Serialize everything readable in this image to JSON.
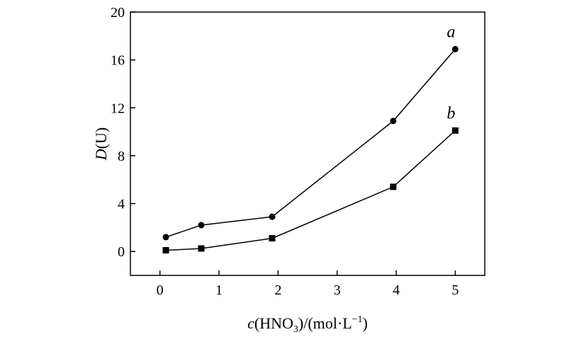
{
  "chart_data": {
    "type": "line",
    "xlim": [
      -0.5,
      5.5
    ],
    "ylim": [
      -2,
      20
    ],
    "xticks": [
      "0",
      "1",
      "2",
      "3",
      "4",
      "5"
    ],
    "yticks": [
      "0",
      "4",
      "8",
      "12",
      "16",
      "20"
    ],
    "grid": false,
    "series": [
      {
        "name": "a",
        "marker": "circle",
        "x": [
          0.1,
          0.7,
          1.9,
          3.95,
          5.0
        ],
        "y": [
          1.2,
          2.2,
          2.9,
          10.9,
          16.9
        ]
      },
      {
        "name": "b",
        "marker": "square",
        "x": [
          0.1,
          0.7,
          1.9,
          3.95,
          5.0
        ],
        "y": [
          0.1,
          0.25,
          1.1,
          5.4,
          10.1
        ]
      }
    ]
  },
  "colors": {
    "ink": "#000000",
    "background": "#ffffff"
  }
}
